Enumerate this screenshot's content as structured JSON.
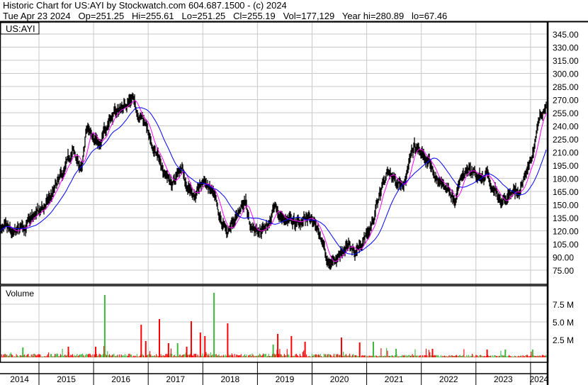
{
  "header": {
    "line1": "Historic Chart for US:AYI by Stockwatch.com 604.687.1500 - (c) 2024",
    "line2": "Tue Apr 23 2024   Op=251.25   Hi=255.61   Lo=251.25   Cl=255.19   Vol=177,129   Year hi=280.89   lo=67.46"
  },
  "colors": {
    "bars": "#000000",
    "ma_short": "#ff00ff",
    "ma_long": "#0000ff",
    "vol_up": "#3cb83c",
    "vol_down": "#ff0000",
    "grid": "#c8c8c8"
  },
  "chart_data": [
    {
      "type": "line",
      "title": "US:AYI",
      "ylabel": "",
      "ylim": [
        67.46,
        345
      ],
      "y_ticks": [
        "345.00",
        "330.00",
        "315.00",
        "300.00",
        "285.00",
        "270.00",
        "255.00",
        "240.00",
        "225.00",
        "210.00",
        "195.00",
        "180.00",
        "165.00",
        "150.00",
        "135.00",
        "120.00",
        "105.00",
        "90.00",
        "75.00"
      ],
      "x_ticks": [
        "2014",
        "2015",
        "2016",
        "2017",
        "2018",
        "2019",
        "2020",
        "2021",
        "2022",
        "2023",
        "2024"
      ],
      "grid": true,
      "series": [
        {
          "kind": "price-ohlc-approx",
          "points": [
            [
              "2014-04",
              124
            ],
            [
              "2014-07",
              112
            ],
            [
              "2014-09",
              124
            ],
            [
              "2015-01",
              141
            ],
            [
              "2015-03",
              157
            ],
            [
              "2015-06",
              185
            ],
            [
              "2015-08",
              210
            ],
            [
              "2015-10",
              189
            ],
            [
              "2015-11",
              234
            ],
            [
              "2016-01",
              230
            ],
            [
              "2016-02",
              214
            ],
            [
              "2016-04",
              250
            ],
            [
              "2016-05",
              254
            ],
            [
              "2016-07",
              262
            ],
            [
              "2016-09",
              274
            ],
            [
              "2016-10",
              258
            ],
            [
              "2016-12",
              246
            ],
            [
              "2017-01",
              218
            ],
            [
              "2017-03",
              201
            ],
            [
              "2017-05",
              181
            ],
            [
              "2017-06",
              173
            ],
            [
              "2017-08",
              197
            ],
            [
              "2017-09",
              173
            ],
            [
              "2017-11",
              161
            ],
            [
              "2018-01",
              177
            ],
            [
              "2018-03",
              157
            ],
            [
              "2018-04",
              133
            ],
            [
              "2018-06",
              116
            ],
            [
              "2018-07",
              133
            ],
            [
              "2018-10",
              153
            ],
            [
              "2018-11",
              124
            ],
            [
              "2019-01",
              124
            ],
            [
              "2019-03",
              128
            ],
            [
              "2019-04",
              141
            ],
            [
              "2019-07",
              133
            ],
            [
              "2019-09",
              128
            ],
            [
              "2019-11",
              133
            ],
            [
              "2020-01",
              128
            ],
            [
              "2020-03",
              108
            ],
            [
              "2020-04",
              80
            ],
            [
              "2020-06",
              92
            ],
            [
              "2020-08",
              104
            ],
            [
              "2020-10",
              96
            ],
            [
              "2021-01",
              120
            ],
            [
              "2021-02",
              133
            ],
            [
              "2021-04",
              173
            ],
            [
              "2021-05",
              185
            ],
            [
              "2021-07",
              177
            ],
            [
              "2021-09",
              181
            ],
            [
              "2021-11",
              214
            ],
            [
              "2022-01",
              206
            ],
            [
              "2022-03",
              189
            ],
            [
              "2022-04",
              177
            ],
            [
              "2022-06",
              169
            ],
            [
              "2022-08",
              161
            ],
            [
              "2022-09",
              177
            ],
            [
              "2022-11",
              185
            ],
            [
              "2023-01",
              177
            ],
            [
              "2023-03",
              189
            ],
            [
              "2023-04",
              165
            ],
            [
              "2023-06",
              157
            ],
            [
              "2023-08",
              165
            ],
            [
              "2023-10",
              165
            ],
            [
              "2023-12",
              189
            ],
            [
              "2024-01",
              206
            ],
            [
              "2024-02",
              238
            ],
            [
              "2024-03",
              254
            ],
            [
              "2024-04",
              266
            ],
            [
              "2024-04-23",
              255.19
            ]
          ]
        }
      ]
    },
    {
      "type": "bar",
      "title": "Volume",
      "ylim": [
        0,
        10
      ],
      "y_ticks": [
        "7.5 M",
        "5.0 M",
        "2.5 M"
      ],
      "spikes_millions": [
        [
          "2014-03",
          3.5,
          "down"
        ],
        [
          "2014-09",
          1.4,
          "up"
        ],
        [
          "2015-07",
          1.5,
          "down"
        ],
        [
          "2016-01",
          1.5,
          "down"
        ],
        [
          "2016-03",
          8.8,
          "up"
        ],
        [
          "2016-11",
          4.6,
          "down"
        ],
        [
          "2016-12",
          2.3,
          "down"
        ],
        [
          "2017-03",
          5.4,
          "down"
        ],
        [
          "2017-05",
          2.0,
          "down"
        ],
        [
          "2017-07",
          2.0,
          "up"
        ],
        [
          "2017-09",
          1.5,
          "down"
        ],
        [
          "2017-10",
          5.1,
          "down"
        ],
        [
          "2017-12",
          3.5,
          "down"
        ],
        [
          "2018-01",
          3.0,
          "down"
        ],
        [
          "2018-03",
          9.1,
          "up"
        ],
        [
          "2018-06",
          4.8,
          "down"
        ],
        [
          "2019-04",
          1.8,
          "up"
        ],
        [
          "2019-05",
          3.3,
          "down"
        ],
        [
          "2019-08",
          3.0,
          "down"
        ],
        [
          "2019-11",
          2.2,
          "down"
        ],
        [
          "2020-07",
          2.8,
          "down"
        ],
        [
          "2020-11",
          2.1,
          "down"
        ],
        [
          "2021-02",
          2.2,
          "up"
        ],
        [
          "2021-07",
          1.2,
          "up"
        ],
        [
          "2022-03",
          1.2,
          "down"
        ],
        [
          "2023-03",
          1.1,
          "down"
        ],
        [
          "2023-07",
          1.1,
          "up"
        ],
        [
          "2024-01",
          1.1,
          "up"
        ]
      ]
    }
  ]
}
